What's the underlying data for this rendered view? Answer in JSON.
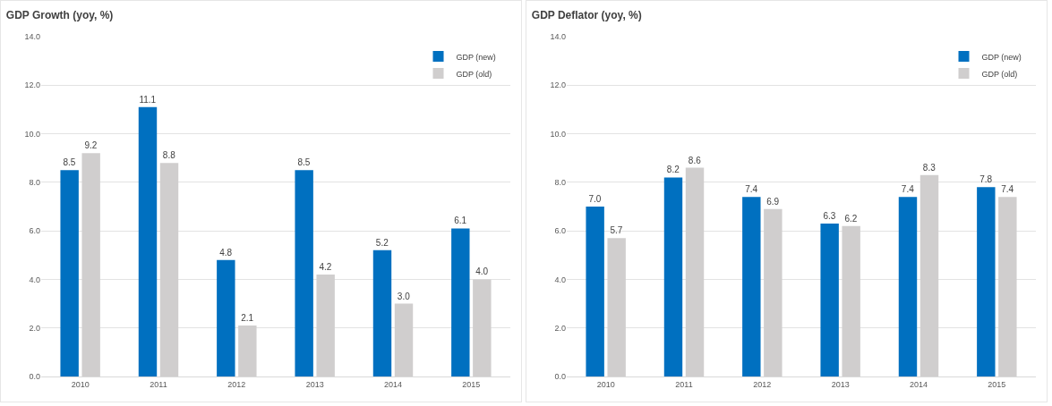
{
  "chart_data": [
    {
      "type": "bar",
      "title": "GDP Growth (yoy, %)",
      "categories": [
        "2010",
        "2011",
        "2012",
        "2013",
        "2014",
        "2015"
      ],
      "ylim": [
        0,
        14
      ],
      "yticks": [
        {
          "value": 0,
          "label": "0.0"
        },
        {
          "value": 2,
          "label": "2.0"
        },
        {
          "value": 4,
          "label": "4.0"
        },
        {
          "value": 6,
          "label": "6.0"
        },
        {
          "value": 8,
          "label": "8.0"
        },
        {
          "value": 10,
          "label": "10.0"
        },
        {
          "value": 12,
          "label": "12.0"
        },
        {
          "value": 14,
          "label": "14.0"
        }
      ],
      "grid": "y",
      "legend": "top right",
      "series": [
        {
          "name": "GDP (new)",
          "color": "#0070c0",
          "values": [
            8.5,
            11.1,
            4.8,
            8.5,
            5.2,
            6.1
          ],
          "value_labels": [
            "8.5",
            "11.1",
            "4.8",
            "8.5",
            "5.2",
            "6.1"
          ]
        },
        {
          "name": "GDP (old)",
          "color": "#d0cece",
          "values": [
            9.2,
            8.8,
            2.1,
            4.2,
            3.0,
            4.0
          ],
          "value_labels": [
            "9.2",
            "8.8",
            "2.1",
            "4.2",
            "3.0",
            "4.0"
          ]
        }
      ]
    },
    {
      "type": "bar",
      "title": "GDP Deflator (yoy, %)",
      "categories": [
        "2010",
        "2011",
        "2012",
        "2013",
        "2014",
        "2015"
      ],
      "ylim": [
        0,
        14
      ],
      "yticks": [
        {
          "value": 0,
          "label": "0.0"
        },
        {
          "value": 2,
          "label": "2.0"
        },
        {
          "value": 4,
          "label": "4.0"
        },
        {
          "value": 6,
          "label": "6.0"
        },
        {
          "value": 8,
          "label": "8.0"
        },
        {
          "value": 10,
          "label": "10.0"
        },
        {
          "value": 12,
          "label": "12.0"
        },
        {
          "value": 14,
          "label": "14.0"
        }
      ],
      "grid": "y",
      "legend": "top right",
      "series": [
        {
          "name": "GDP (new)",
          "color": "#0070c0",
          "values": [
            7.0,
            8.2,
            7.4,
            6.3,
            7.4,
            7.8
          ],
          "value_labels": [
            "7.0",
            "8.2",
            "7.4",
            "6.3",
            "7.4",
            "7.8"
          ]
        },
        {
          "name": "GDP (old)",
          "color": "#d0cece",
          "values": [
            5.7,
            8.6,
            6.9,
            6.2,
            8.3,
            7.4
          ],
          "value_labels": [
            "5.7",
            "8.6",
            "6.9",
            "6.2",
            "8.3",
            "7.4"
          ]
        }
      ]
    }
  ]
}
